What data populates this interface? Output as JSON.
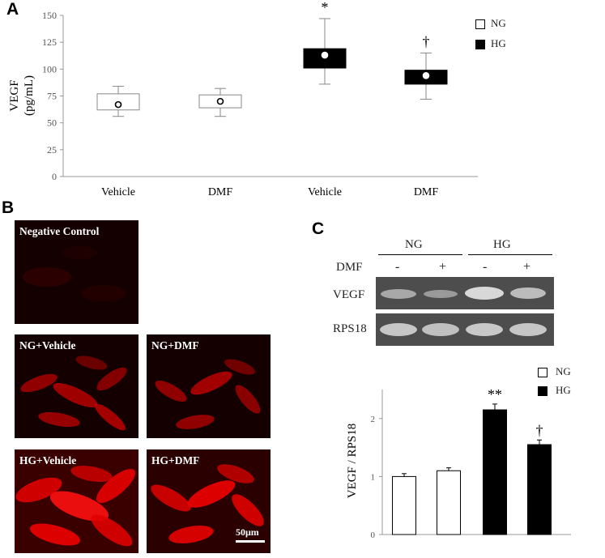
{
  "panel_letters": {
    "a": "A",
    "b": "B",
    "c": "C"
  },
  "chart_data": [
    {
      "type": "box",
      "panel": "A",
      "ylabel": "VEGF",
      "ylabel_units": "(pg/mL)",
      "ylim": [
        0,
        150
      ],
      "yticks": [
        "0",
        "25",
        "50",
        "75",
        "100",
        "125",
        "150"
      ],
      "categories": [
        "Vehicle",
        "DMF",
        "Vehicle",
        "DMF"
      ],
      "groups": [
        "NG",
        "NG",
        "HG",
        "HG"
      ],
      "boxes": [
        {
          "min": 56,
          "q1": 62,
          "mean": 67,
          "q3": 77,
          "max": 84,
          "fill": "#ffffff",
          "marker": ""
        },
        {
          "min": 56,
          "q1": 64,
          "mean": 70,
          "q3": 76,
          "max": 82,
          "fill": "#ffffff",
          "marker": ""
        },
        {
          "min": 86,
          "q1": 101,
          "mean": 113,
          "q3": 119,
          "max": 147,
          "fill": "#000000",
          "marker": "*"
        },
        {
          "min": 72,
          "q1": 86,
          "mean": 94,
          "q3": 99,
          "max": 115,
          "fill": "#000000",
          "marker": "†"
        }
      ],
      "legend": [
        {
          "name": "NG",
          "color": "#ffffff"
        },
        {
          "name": "HG",
          "color": "#000000"
        }
      ]
    },
    {
      "type": "bar",
      "panel": "C",
      "ylabel": "VEGF / RPS18",
      "ylim": [
        0,
        2.5
      ],
      "yticks": [
        "0",
        "1",
        "2"
      ],
      "categories": [
        "",
        "",
        "",
        ""
      ],
      "values": [
        1.0,
        1.1,
        2.15,
        1.55
      ],
      "errors": [
        0.05,
        0.05,
        0.1,
        0.08
      ],
      "fills": [
        "#ffffff",
        "#ffffff",
        "#000000",
        "#000000"
      ],
      "markers": [
        "",
        "",
        "**",
        "†"
      ],
      "legend": [
        {
          "name": "NG",
          "color": "#ffffff"
        },
        {
          "name": "HG",
          "color": "#000000"
        }
      ]
    }
  ],
  "micrographs": [
    {
      "label": "Negative Control",
      "intensity": "none"
    },
    {
      "label": "NG+Vehicle",
      "intensity": "medium"
    },
    {
      "label": "NG+DMF",
      "intensity": "medium"
    },
    {
      "label": "HG+Vehicle",
      "intensity": "high"
    },
    {
      "label": "HG+DMF",
      "intensity": "high"
    }
  ],
  "scale_bar": "50μm",
  "gel": {
    "group_labels": [
      "NG",
      "HG"
    ],
    "treatment_label": "DMF",
    "lane_signs": [
      "-",
      "+",
      "-",
      "+"
    ],
    "rows": [
      "VEGF",
      "RPS18"
    ]
  }
}
